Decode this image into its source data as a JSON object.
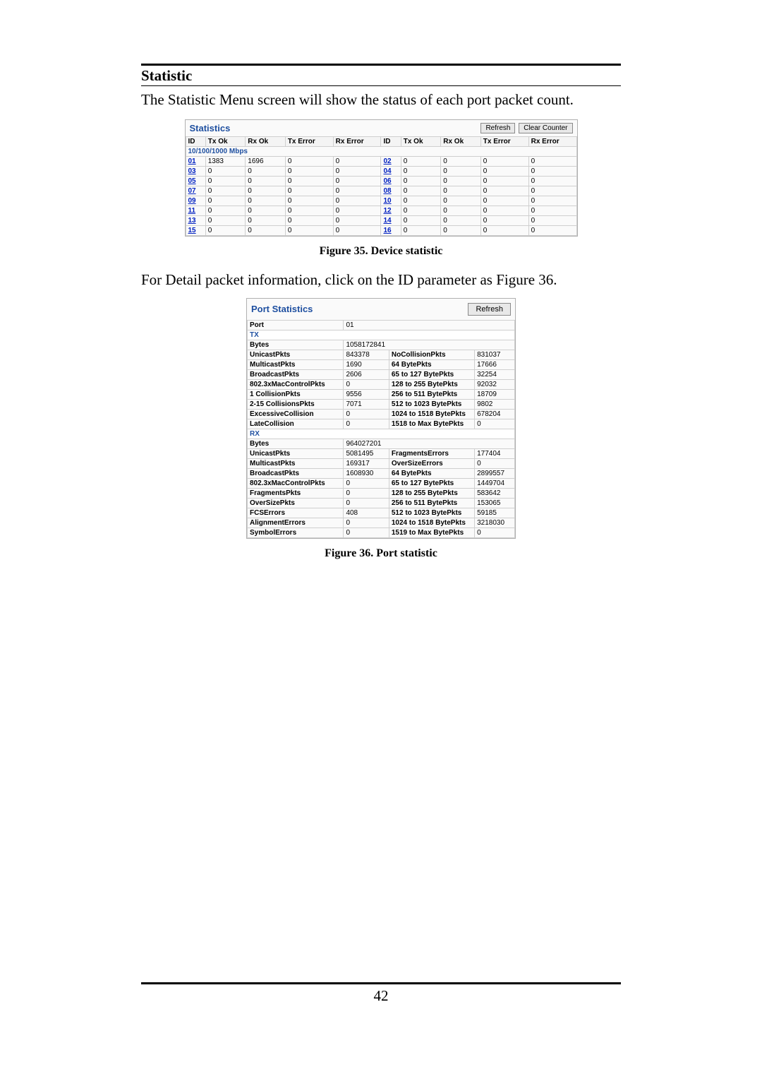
{
  "section_title": "Statistic",
  "intro_text": "The Statistic Menu screen will show the status of each port packet count.",
  "detail_text": "For Detail packet information, click on the ID parameter as Figure 36.",
  "fig35_caption": "Figure 35. Device statistic",
  "fig36_caption": "Figure 36. Port statistic",
  "page_number": "42",
  "stats": {
    "title": "Statistics",
    "btn_refresh": "Refresh",
    "btn_clear": "Clear Counter",
    "headers": [
      "ID",
      "Tx Ok",
      "Rx Ok",
      "Tx Error",
      "Rx Error",
      "ID",
      "Tx Ok",
      "Rx Ok",
      "Tx Error",
      "Rx Error"
    ],
    "span_label": "10/100/1000 Mbps",
    "rows": [
      [
        "01",
        "1383",
        "1696",
        "0",
        "0",
        "02",
        "0",
        "0",
        "0",
        "0"
      ],
      [
        "03",
        "0",
        "0",
        "0",
        "0",
        "04",
        "0",
        "0",
        "0",
        "0"
      ],
      [
        "05",
        "0",
        "0",
        "0",
        "0",
        "06",
        "0",
        "0",
        "0",
        "0"
      ],
      [
        "07",
        "0",
        "0",
        "0",
        "0",
        "08",
        "0",
        "0",
        "0",
        "0"
      ],
      [
        "09",
        "0",
        "0",
        "0",
        "0",
        "10",
        "0",
        "0",
        "0",
        "0"
      ],
      [
        "11",
        "0",
        "0",
        "0",
        "0",
        "12",
        "0",
        "0",
        "0",
        "0"
      ],
      [
        "13",
        "0",
        "0",
        "0",
        "0",
        "14",
        "0",
        "0",
        "0",
        "0"
      ],
      [
        "15",
        "0",
        "0",
        "0",
        "0",
        "16",
        "0",
        "0",
        "0",
        "0"
      ]
    ]
  },
  "port": {
    "title": "Port Statistics",
    "btn_refresh": "Refresh",
    "port_label": "Port",
    "port_value": "01",
    "tx_label": "TX",
    "rx_label": "RX",
    "tx_rows": [
      [
        "Bytes",
        "1058172841",
        "",
        ""
      ],
      [
        "UnicastPkts",
        "843378",
        "NoCollisionPkts",
        "831037"
      ],
      [
        "MulticastPkts",
        "1690",
        "64 BytePkts",
        "17666"
      ],
      [
        "BroadcastPkts",
        "2606",
        "65 to 127 BytePkts",
        "32254"
      ],
      [
        "802.3xMacControlPkts",
        "0",
        "128 to 255 BytePkts",
        "92032"
      ],
      [
        "1 CollisionPkts",
        "9556",
        "256 to 511 BytePkts",
        "18709"
      ],
      [
        "2-15 CollisionsPkts",
        "7071",
        "512 to 1023 BytePkts",
        "9802"
      ],
      [
        "ExcessiveCollision",
        "0",
        "1024 to 1518 BytePkts",
        "678204"
      ],
      [
        "LateCollision",
        "0",
        "1518 to Max BytePkts",
        "0"
      ]
    ],
    "rx_rows": [
      [
        "Bytes",
        "964027201",
        "",
        ""
      ],
      [
        "UnicastPkts",
        "5081495",
        "FragmentsErrors",
        "177404"
      ],
      [
        "MulticastPkts",
        "169317",
        "OverSizeErrors",
        "0"
      ],
      [
        "BroadcastPkts",
        "1608930",
        "64 BytePkts",
        "2899557"
      ],
      [
        "802.3xMacControlPkts",
        "0",
        "65 to 127 BytePkts",
        "1449704"
      ],
      [
        "FragmentsPkts",
        "0",
        "128 to 255 BytePkts",
        "583642"
      ],
      [
        "OverSizePkts",
        "0",
        "256 to 511 BytePkts",
        "153065"
      ],
      [
        "FCSErrors",
        "408",
        "512 to 1023 BytePkts",
        "59185"
      ],
      [
        "AlignmentErrors",
        "0",
        "1024 to 1518 BytePkts",
        "3218030"
      ],
      [
        "SymbolErrors",
        "0",
        "1519 to Max BytePkts",
        "0"
      ]
    ]
  }
}
